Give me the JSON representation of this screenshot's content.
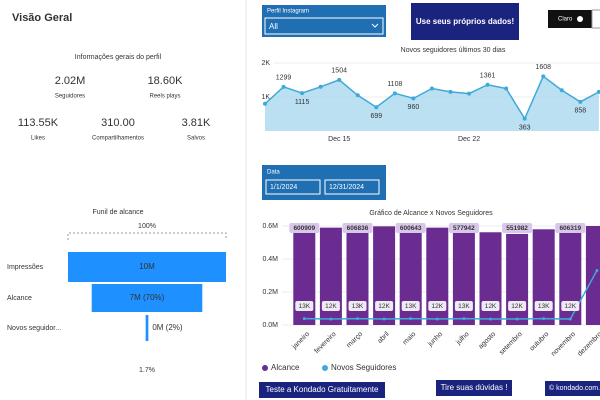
{
  "header": {
    "title": "Visão Geral"
  },
  "profile": {
    "title": "Informações gerais do perfil",
    "kpis": [
      {
        "value": "2.02M",
        "label": "Seguidores"
      },
      {
        "value": "18.60K",
        "label": "Reels plays"
      },
      {
        "value": "113.55K",
        "label": "Likes"
      },
      {
        "value": "310.00",
        "label": "Compartilhamentos"
      },
      {
        "value": "3.81K",
        "label": "Salvos"
      }
    ]
  },
  "filters": {
    "profile": {
      "label": "Perfil Instagram",
      "value": "All"
    },
    "date": {
      "label": "Data",
      "start": "1/1/2024",
      "end": "12/31/2024"
    }
  },
  "button": "Use seus próprios dados!",
  "theme_toggle": "Claro",
  "footer": {
    "trial": "Teste a Kondado Gratuitamente",
    "help": "Tire suas dúvidas !",
    "site": "© kondado.com.br"
  },
  "chart_data": [
    {
      "type": "funnel",
      "title": "Funil de alcance",
      "categories": [
        "Impressões",
        "Alcance",
        "Novos seguidor..."
      ],
      "values": [
        10000000,
        7000000,
        170000
      ],
      "value_labels": [
        "10M",
        "7M (70%)",
        "0M (2%)"
      ],
      "annotations": [
        "100%",
        "1.7%"
      ],
      "color": "#1e90ff"
    },
    {
      "type": "line",
      "title": "Novos seguidores últimos 30 dias",
      "categories": [
        null,
        null,
        null,
        null,
        "Dec 15",
        null,
        null,
        null,
        null,
        null,
        null,
        "Dec 22",
        null,
        null,
        null,
        null,
        null,
        null,
        null
      ],
      "values": [
        800,
        1299,
        1115,
        1300,
        1504,
        1050,
        699,
        1108,
        960,
        1250,
        1150,
        1100,
        1361,
        1250,
        363,
        1608,
        1200,
        858,
        1150
      ],
      "value_labels": [
        null,
        "1299",
        "1115",
        null,
        "1504",
        null,
        "699",
        "1108",
        "960",
        null,
        null,
        null,
        "1361",
        null,
        "363",
        "1608",
        null,
        "858",
        null
      ],
      "ylim": [
        0,
        2000
      ],
      "yticks": [
        {
          "value": 1000,
          "label": "1K"
        },
        {
          "value": 2000,
          "label": "2K"
        }
      ],
      "color": "#3fa9d9",
      "area": true
    },
    {
      "type": "combo",
      "title": "Gráfico de Alcance x Novos Seguidores",
      "categories": [
        "janeiro",
        "fevereiro",
        "março",
        "abril",
        "maio",
        "junho",
        "julho",
        "agosto",
        "setembro",
        "outubro",
        "novembro",
        "dezembro"
      ],
      "series": [
        {
          "name": "Alcance",
          "type": "bar",
          "color": "#6a2c91",
          "values": [
            600909,
            590000,
            606836,
            598000,
            600643,
            590000,
            577942,
            562000,
            551982,
            580000,
            606319,
            600000
          ],
          "value_labels": [
            "600909",
            null,
            "606836",
            null,
            "600643",
            null,
            "577942",
            null,
            "551982",
            null,
            "606319",
            null
          ]
        },
        {
          "name": "Novos Seguidores",
          "type": "line",
          "axis": "y2",
          "color": "#3fa9d9",
          "values": [
            13000,
            12000,
            13000,
            12000,
            13000,
            12000,
            13000,
            12000,
            12000,
            13000,
            12000,
            110000
          ],
          "value_labels": [
            "13K",
            "12K",
            "13K",
            "12K",
            "13K",
            "12K",
            "13K",
            "12K",
            "12K",
            "13K",
            "12K",
            null
          ]
        }
      ],
      "ylim": [
        0,
        600000
      ],
      "yticks": [
        {
          "value": 0,
          "label": "0.0M"
        },
        {
          "value": 200000,
          "label": "0.2M"
        },
        {
          "value": 400000,
          "label": "0.4M"
        },
        {
          "value": 600000,
          "label": "0.6M"
        }
      ],
      "y2lim": [
        0,
        200000
      ],
      "legend": "bottom-left"
    }
  ]
}
